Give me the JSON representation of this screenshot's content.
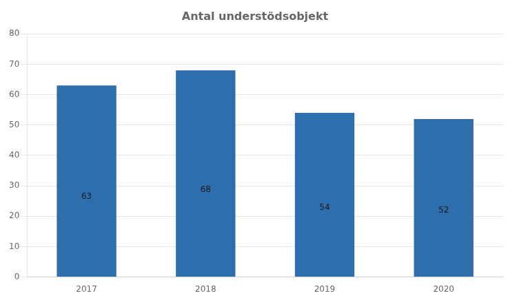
{
  "chart_data": {
    "type": "bar",
    "title": "Antal understödsobjekt",
    "categories": [
      "2017",
      "2018",
      "2019",
      "2020"
    ],
    "values": [
      63,
      68,
      54,
      52
    ],
    "color": "#2E6EAD",
    "ylim": [
      0,
      80
    ],
    "yticks": [
      0,
      10,
      20,
      30,
      40,
      50,
      60,
      70,
      80
    ],
    "grid": true,
    "data_labels": true
  }
}
